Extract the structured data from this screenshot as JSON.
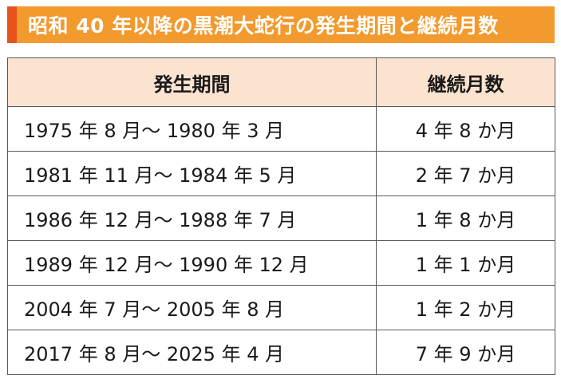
{
  "title": "昭和 40 年以降の黒潮大蛇行の発生期間と継続月数",
  "colors": {
    "title_background": "#f29a2e",
    "title_accent": "#e8521c",
    "header_background": "#fbe3cf"
  },
  "table": {
    "headers": [
      "発生期間",
      "継続月数"
    ],
    "rows": [
      {
        "period": "1975 年 8 月～ 1980 年 3 月",
        "duration": "4 年 8 か月"
      },
      {
        "period": "1981 年 11 月～ 1984 年 5 月",
        "duration": "2 年 7 か月"
      },
      {
        "period": "1986 年 12 月～ 1988 年 7 月",
        "duration": "1 年 8 か月"
      },
      {
        "period": "1989 年 12 月～ 1990 年 12 月",
        "duration": "1 年 1 か月"
      },
      {
        "period": "2004 年 7 月～ 2005 年 8 月",
        "duration": "1 年 2 か月"
      },
      {
        "period": "2017 年 8 月～ 2025 年 4 月",
        "duration": "7 年 9 か月"
      }
    ]
  }
}
